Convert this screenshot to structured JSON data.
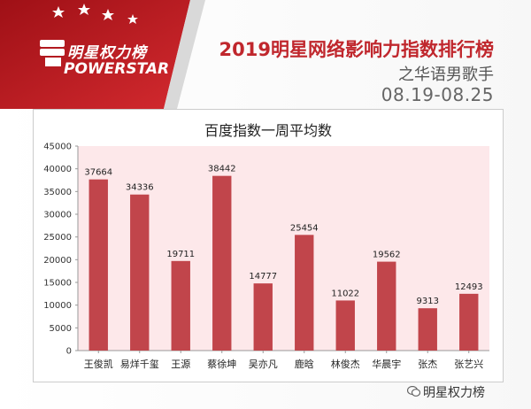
{
  "logo": {
    "cn": "明星权力榜",
    "en": "OWERSTAR",
    "en_initial": "P"
  },
  "header": {
    "title": "2019明星网络影响力指数排行榜",
    "subtitle": "之华语男歌手",
    "date_range": "08.19-08.25"
  },
  "watermark": {
    "text": "明星权力榜"
  },
  "colors": {
    "accent": "#c0272d",
    "bar": "#c1454b",
    "panel": "#fde8ea"
  },
  "chart_data": {
    "type": "bar",
    "title": "百度指数一周平均数",
    "xlabel": "",
    "ylabel": "",
    "categories": [
      "王俊凯",
      "易烊千玺",
      "王源",
      "蔡徐坤",
      "吴亦凡",
      "鹿晗",
      "林俊杰",
      "华晨宇",
      "张杰",
      "张艺兴"
    ],
    "values": [
      37664,
      34336,
      19711,
      38442,
      14777,
      25454,
      11022,
      19562,
      9313,
      12493
    ],
    "ylim": [
      0,
      45000
    ],
    "yticks": [
      0,
      5000,
      10000,
      15000,
      20000,
      25000,
      30000,
      35000,
      40000,
      45000
    ],
    "grid": false,
    "data_labels": true
  }
}
